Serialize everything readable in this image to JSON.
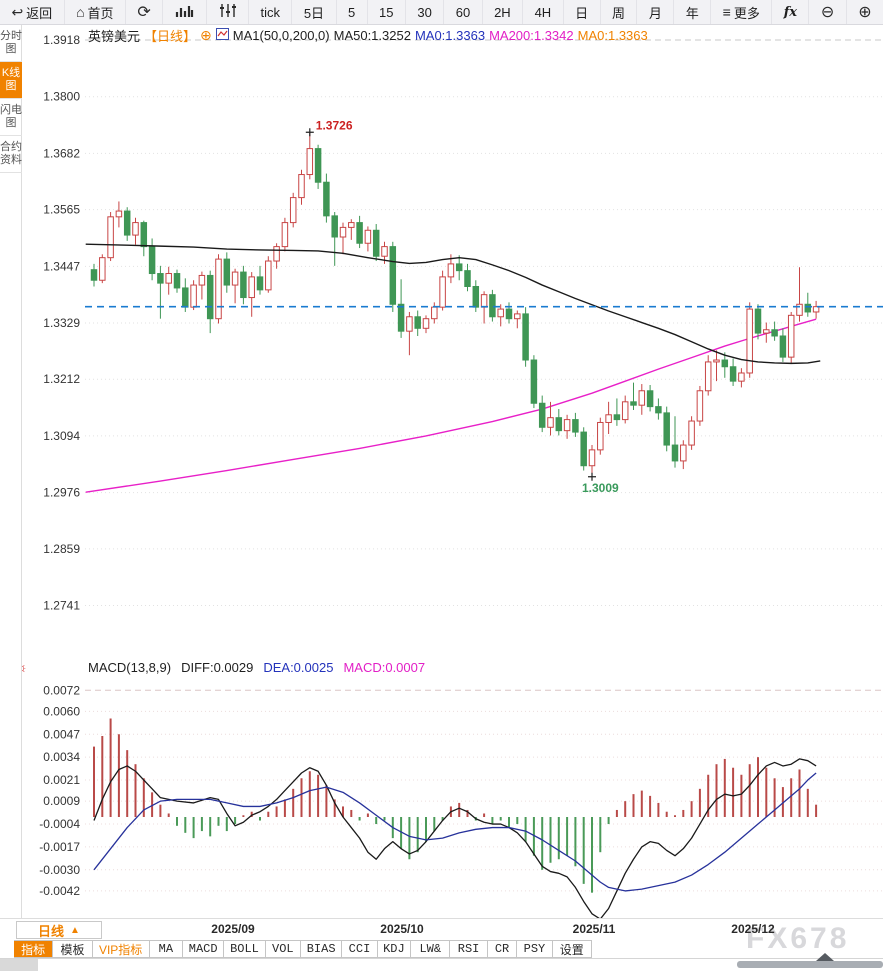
{
  "toolbar": {
    "back_label": "返回",
    "home_label": "首页",
    "more_label": "更多",
    "fx_label": "fx",
    "icons": {
      "back": "↩",
      "home": "⌂",
      "refresh": "⟳",
      "more": "≡",
      "zoom_out": "⊖",
      "zoom_in": "⊕"
    },
    "periods": [
      "tick",
      "5日",
      "5",
      "15",
      "30",
      "60",
      "2H",
      "4H",
      "日",
      "周",
      "月",
      "年"
    ]
  },
  "sidebar": {
    "items": [
      "分时图",
      "K线图",
      "闪电图",
      "合约资料"
    ],
    "active_index": 1
  },
  "chart_header": {
    "symbol": "英镑美元",
    "period": "【日线】",
    "plus_icon": "⊕",
    "ma_group": "MA1(50,0,200,0)",
    "ma50": "MA50:1.3252",
    "ma0_blue": "MA0:1.3363",
    "ma200": "MA200:1.3342",
    "ma0_orange": "MA0:1.3363"
  },
  "macd_header": {
    "title": "MACD(13,8,9)",
    "diff": "DIFF:0.0029",
    "dea": "DEA:0.0025",
    "macd": "MACD:0.0007"
  },
  "bottom": {
    "period_label": "日线",
    "period_arrow": "▲",
    "months": [
      "2025/09",
      "2025/10",
      "2025/11",
      "2025/12"
    ],
    "tabs": [
      "指标",
      "模板",
      "VIP指标",
      "MA",
      "MACD",
      "BOLL",
      "VOL",
      "BIAS",
      "CCI",
      "KDJ",
      "LW&",
      "RSI",
      "CR",
      "PSY",
      "设置"
    ],
    "watermark": "FX678"
  },
  "chart_data": {
    "type": "candlestick",
    "title": "英镑美元 日线 (GBP/USD Daily)",
    "y_ticks": [
      1.3918,
      1.38,
      1.3682,
      1.3565,
      1.3447,
      1.3329,
      1.3212,
      1.3094,
      1.2976,
      1.2859,
      1.2741
    ],
    "x_labels": [
      "2025/09",
      "2025/10",
      "2025/11",
      "2025/12"
    ],
    "price_line": {
      "value": 1.3363,
      "color": "#1a7bd0"
    },
    "annotations": [
      {
        "label": "1.3726",
        "index": 26,
        "price": 1.3726,
        "color": "#cc2222",
        "position": "above"
      },
      {
        "label": "1.3009",
        "index": 60,
        "price": 1.3009,
        "color": "#3a9a5c",
        "position": "below"
      }
    ],
    "colors": {
      "up": "#c84545",
      "down": "#3f9655",
      "ma50": "#1a1a1a",
      "ma200": "#e820c8",
      "grid": "#e0e0e0",
      "hist_up": "#b94a48",
      "hist_down": "#4a9a58",
      "diff": "#1a1a1a",
      "dea": "#27329b"
    },
    "candles": [
      [
        1.344,
        1.3452,
        1.3405,
        1.3418
      ],
      [
        1.3418,
        1.3472,
        1.3412,
        1.3465
      ],
      [
        1.3465,
        1.356,
        1.3458,
        1.355
      ],
      [
        1.355,
        1.3582,
        1.3528,
        1.3562
      ],
      [
        1.3562,
        1.357,
        1.35,
        1.3512
      ],
      [
        1.3512,
        1.3548,
        1.3492,
        1.3538
      ],
      [
        1.3538,
        1.3542,
        1.3468,
        1.3488
      ],
      [
        1.3488,
        1.3505,
        1.3418,
        1.3432
      ],
      [
        1.3432,
        1.3448,
        1.3338,
        1.3412
      ],
      [
        1.3412,
        1.3446,
        1.3388,
        1.3432
      ],
      [
        1.3432,
        1.344,
        1.3392,
        1.3402
      ],
      [
        1.3402,
        1.3422,
        1.3352,
        1.3362
      ],
      [
        1.3362,
        1.3418,
        1.3356,
        1.3408
      ],
      [
        1.3408,
        1.3436,
        1.3378,
        1.3428
      ],
      [
        1.3428,
        1.3438,
        1.3308,
        1.3338
      ],
      [
        1.3338,
        1.3472,
        1.3328,
        1.3462
      ],
      [
        1.3462,
        1.3476,
        1.3392,
        1.3408
      ],
      [
        1.3408,
        1.3442,
        1.337,
        1.3435
      ],
      [
        1.3435,
        1.3448,
        1.3368,
        1.3382
      ],
      [
        1.3382,
        1.3435,
        1.3342,
        1.3425
      ],
      [
        1.3425,
        1.3448,
        1.3388,
        1.3398
      ],
      [
        1.3398,
        1.3468,
        1.3392,
        1.3458
      ],
      [
        1.3458,
        1.3495,
        1.3442,
        1.3488
      ],
      [
        1.3488,
        1.3548,
        1.3478,
        1.3538
      ],
      [
        1.3538,
        1.36,
        1.3528,
        1.359
      ],
      [
        1.359,
        1.3648,
        1.3575,
        1.3638
      ],
      [
        1.3638,
        1.3726,
        1.3628,
        1.3692
      ],
      [
        1.3692,
        1.37,
        1.3608,
        1.3622
      ],
      [
        1.3622,
        1.364,
        1.3538,
        1.3552
      ],
      [
        1.3552,
        1.356,
        1.3448,
        1.3508
      ],
      [
        1.3508,
        1.3538,
        1.3472,
        1.3528
      ],
      [
        1.3528,
        1.3545,
        1.3502,
        1.3538
      ],
      [
        1.3538,
        1.3552,
        1.3485,
        1.3495
      ],
      [
        1.3495,
        1.353,
        1.3478,
        1.3522
      ],
      [
        1.3522,
        1.3535,
        1.3458,
        1.3468
      ],
      [
        1.3468,
        1.3498,
        1.3452,
        1.3488
      ],
      [
        1.3488,
        1.3498,
        1.3352,
        1.3368
      ],
      [
        1.3368,
        1.342,
        1.3298,
        1.3312
      ],
      [
        1.3312,
        1.3352,
        1.3262,
        1.3342
      ],
      [
        1.3342,
        1.3355,
        1.3302,
        1.3318
      ],
      [
        1.3318,
        1.3345,
        1.3308,
        1.3338
      ],
      [
        1.3338,
        1.3372,
        1.3328,
        1.3362
      ],
      [
        1.3362,
        1.3438,
        1.3355,
        1.3425
      ],
      [
        1.3425,
        1.3472,
        1.3412,
        1.3452
      ],
      [
        1.3452,
        1.347,
        1.3418,
        1.3438
      ],
      [
        1.3438,
        1.3452,
        1.3395,
        1.3405
      ],
      [
        1.3405,
        1.3418,
        1.3352,
        1.3362
      ],
      [
        1.3362,
        1.3395,
        1.3328,
        1.3388
      ],
      [
        1.3388,
        1.3398,
        1.3332,
        1.3342
      ],
      [
        1.3342,
        1.3368,
        1.3322,
        1.3358
      ],
      [
        1.3358,
        1.3372,
        1.3328,
        1.3338
      ],
      [
        1.3338,
        1.3355,
        1.3318,
        1.3348
      ],
      [
        1.3348,
        1.3362,
        1.3238,
        1.3252
      ],
      [
        1.3252,
        1.3262,
        1.3152,
        1.3162
      ],
      [
        1.3162,
        1.3178,
        1.3102,
        1.3112
      ],
      [
        1.3112,
        1.3165,
        1.3095,
        1.3132
      ],
      [
        1.3132,
        1.315,
        1.3095,
        1.3105
      ],
      [
        1.3105,
        1.3138,
        1.3088,
        1.3128
      ],
      [
        1.3128,
        1.3142,
        1.3092,
        1.3102
      ],
      [
        1.3102,
        1.3112,
        1.3022,
        1.3032
      ],
      [
        1.3032,
        1.3075,
        1.3009,
        1.3065
      ],
      [
        1.3065,
        1.3132,
        1.3055,
        1.3122
      ],
      [
        1.3122,
        1.3165,
        1.3098,
        1.3138
      ],
      [
        1.3138,
        1.3172,
        1.3115,
        1.3128
      ],
      [
        1.3128,
        1.3178,
        1.312,
        1.3165
      ],
      [
        1.3165,
        1.3205,
        1.3148,
        1.3158
      ],
      [
        1.3158,
        1.3202,
        1.3138,
        1.3188
      ],
      [
        1.3188,
        1.32,
        1.3145,
        1.3155
      ],
      [
        1.3155,
        1.3172,
        1.3128,
        1.3142
      ],
      [
        1.3142,
        1.3155,
        1.3062,
        1.3075
      ],
      [
        1.3075,
        1.3135,
        1.3028,
        1.3042
      ],
      [
        1.3042,
        1.3085,
        1.3025,
        1.3075
      ],
      [
        1.3075,
        1.3135,
        1.3065,
        1.3125
      ],
      [
        1.3125,
        1.3198,
        1.3115,
        1.3188
      ],
      [
        1.3188,
        1.3262,
        1.3178,
        1.3248
      ],
      [
        1.3248,
        1.3272,
        1.3208,
        1.3252
      ],
      [
        1.3252,
        1.3268,
        1.3215,
        1.3238
      ],
      [
        1.3238,
        1.3255,
        1.3198,
        1.3208
      ],
      [
        1.3208,
        1.3235,
        1.3195,
        1.3225
      ],
      [
        1.3225,
        1.3372,
        1.3215,
        1.3358
      ],
      [
        1.3358,
        1.3368,
        1.3295,
        1.3308
      ],
      [
        1.3308,
        1.333,
        1.3288,
        1.3315
      ],
      [
        1.3315,
        1.3332,
        1.3292,
        1.3302
      ],
      [
        1.3302,
        1.3318,
        1.3248,
        1.3258
      ],
      [
        1.3258,
        1.3352,
        1.3245,
        1.3345
      ],
      [
        1.3345,
        1.3445,
        1.3332,
        1.3368
      ],
      [
        1.3368,
        1.3392,
        1.3342,
        1.3352
      ],
      [
        1.3352,
        1.3375,
        1.3338,
        1.3363
      ]
    ],
    "ma50_points": [
      [
        -1,
        1.3493
      ],
      [
        4,
        1.3491
      ],
      [
        8,
        1.3489
      ],
      [
        12,
        1.3487
      ],
      [
        16,
        1.3483
      ],
      [
        20,
        1.3481
      ],
      [
        24,
        1.348
      ],
      [
        27,
        1.3479
      ],
      [
        30,
        1.3474
      ],
      [
        33,
        1.3465
      ],
      [
        36,
        1.3457
      ],
      [
        38,
        1.3453
      ],
      [
        40,
        1.3455
      ],
      [
        42,
        1.3461
      ],
      [
        44,
        1.3465
      ],
      [
        46,
        1.3461
      ],
      [
        48,
        1.345
      ],
      [
        50,
        1.3438
      ],
      [
        52,
        1.3424
      ],
      [
        54,
        1.3408
      ],
      [
        56,
        1.3394
      ],
      [
        58,
        1.338
      ],
      [
        60,
        1.3367
      ],
      [
        62,
        1.3354
      ],
      [
        64,
        1.3342
      ],
      [
        66,
        1.333
      ],
      [
        68,
        1.3318
      ],
      [
        70,
        1.3305
      ],
      [
        72,
        1.329
      ],
      [
        74,
        1.3275
      ],
      [
        76,
        1.3262
      ],
      [
        78,
        1.3253
      ],
      [
        80,
        1.3248
      ],
      [
        82,
        1.3246
      ],
      [
        84,
        1.3245
      ],
      [
        86,
        1.3246
      ],
      [
        87.5,
        1.325
      ]
    ],
    "ma200_points": [
      [
        -1,
        1.2977
      ],
      [
        8,
        1.3
      ],
      [
        16,
        1.3022
      ],
      [
        24,
        1.3045
      ],
      [
        32,
        1.3068
      ],
      [
        40,
        1.3094
      ],
      [
        48,
        1.3124
      ],
      [
        54,
        1.315
      ],
      [
        60,
        1.3183
      ],
      [
        64,
        1.3208
      ],
      [
        68,
        1.3233
      ],
      [
        72,
        1.3257
      ],
      [
        76,
        1.3281
      ],
      [
        79,
        1.3297
      ],
      [
        81,
        1.3307
      ],
      [
        83,
        1.3317
      ],
      [
        85,
        1.3327
      ],
      [
        87,
        1.3337
      ]
    ],
    "macd": {
      "params": "MACD(13,8,9)",
      "diff_last": 0.0029,
      "dea_last": 0.0025,
      "macd_last": 0.0007,
      "y_ticks": [
        0.0072,
        0.006,
        0.0047,
        0.0034,
        0.0021,
        0.0009,
        -0.0004,
        -0.0017,
        -0.003,
        -0.0042
      ],
      "hist_1e4": [
        40,
        46,
        56,
        47,
        38,
        30,
        22,
        14,
        7,
        2,
        -5,
        -9,
        -12,
        -8,
        -11,
        -5,
        -8,
        -4,
        1,
        3,
        -2,
        3,
        6,
        10,
        16,
        22,
        26,
        24,
        18,
        10,
        6,
        4,
        -2,
        2,
        -4,
        -2,
        -12,
        -18,
        -24,
        -20,
        -14,
        -8,
        -2,
        6,
        8,
        4,
        -2,
        2,
        -4,
        -2,
        -6,
        -4,
        -14,
        -22,
        -30,
        -26,
        -24,
        -22,
        -28,
        -38,
        -43,
        -20,
        -4,
        4,
        9,
        13,
        15,
        12,
        8,
        3,
        1,
        4,
        9,
        16,
        24,
        30,
        33,
        28,
        24,
        30,
        34,
        28,
        22,
        17,
        22,
        27,
        16,
        7
      ],
      "diff_points_1e4": [
        [
          0,
          -2
        ],
        [
          1,
          10
        ],
        [
          2,
          20
        ],
        [
          3,
          27
        ],
        [
          4,
          29
        ],
        [
          5,
          26
        ],
        [
          6,
          21
        ],
        [
          7,
          16
        ],
        [
          8,
          11
        ],
        [
          10,
          9
        ],
        [
          12,
          8
        ],
        [
          14,
          11
        ],
        [
          15,
          10
        ],
        [
          16,
          2
        ],
        [
          17,
          -5
        ],
        [
          18,
          -3
        ],
        [
          19,
          1
        ],
        [
          20,
          3
        ],
        [
          21,
          6
        ],
        [
          22,
          10
        ],
        [
          23,
          15
        ],
        [
          24,
          20
        ],
        [
          25,
          25
        ],
        [
          26,
          28
        ],
        [
          27,
          26
        ],
        [
          28,
          18
        ],
        [
          29,
          8
        ],
        [
          30,
          0
        ],
        [
          31,
          -6
        ],
        [
          32,
          -12
        ],
        [
          33,
          -20
        ],
        [
          34,
          -24
        ],
        [
          35,
          -18
        ],
        [
          36,
          -14
        ],
        [
          37,
          -18
        ],
        [
          38,
          -21
        ],
        [
          39,
          -19
        ],
        [
          40,
          -14
        ],
        [
          41,
          -8
        ],
        [
          42,
          -2
        ],
        [
          43,
          3
        ],
        [
          44,
          5
        ],
        [
          45,
          3
        ],
        [
          46,
          -1
        ],
        [
          47,
          -3
        ],
        [
          48,
          -4
        ],
        [
          49,
          -4
        ],
        [
          50,
          -6
        ],
        [
          51,
          -9
        ],
        [
          52,
          -14
        ],
        [
          53,
          -21
        ],
        [
          54,
          -28
        ],
        [
          55,
          -31
        ],
        [
          56,
          -32
        ],
        [
          57,
          -34
        ],
        [
          58,
          -40
        ],
        [
          59,
          -48
        ],
        [
          60,
          -55
        ],
        [
          61,
          -58
        ],
        [
          62,
          -52
        ],
        [
          63,
          -42
        ],
        [
          64,
          -32
        ],
        [
          65,
          -24
        ],
        [
          66,
          -17
        ],
        [
          67,
          -14
        ],
        [
          68,
          -15
        ],
        [
          69,
          -19
        ],
        [
          70,
          -22
        ],
        [
          71,
          -18
        ],
        [
          72,
          -12
        ],
        [
          73,
          -4
        ],
        [
          74,
          4
        ],
        [
          75,
          10
        ],
        [
          76,
          13
        ],
        [
          77,
          12
        ],
        [
          78,
          13
        ],
        [
          79,
          18
        ],
        [
          80,
          24
        ],
        [
          81,
          29
        ],
        [
          82,
          31
        ],
        [
          83,
          29
        ],
        [
          84,
          30
        ],
        [
          85,
          33
        ],
        [
          86,
          32
        ],
        [
          87,
          29
        ]
      ],
      "dea_points_1e4": [
        [
          0,
          -30
        ],
        [
          2,
          -18
        ],
        [
          4,
          -6
        ],
        [
          6,
          4
        ],
        [
          8,
          9
        ],
        [
          10,
          10
        ],
        [
          12,
          10
        ],
        [
          14,
          10
        ],
        [
          16,
          8
        ],
        [
          18,
          6
        ],
        [
          20,
          6
        ],
        [
          22,
          8
        ],
        [
          24,
          11
        ],
        [
          26,
          15
        ],
        [
          28,
          17
        ],
        [
          30,
          14
        ],
        [
          32,
          8
        ],
        [
          34,
          1
        ],
        [
          36,
          -6
        ],
        [
          38,
          -11
        ],
        [
          40,
          -13
        ],
        [
          42,
          -12
        ],
        [
          44,
          -9
        ],
        [
          46,
          -7
        ],
        [
          48,
          -6
        ],
        [
          50,
          -6
        ],
        [
          52,
          -8
        ],
        [
          54,
          -13
        ],
        [
          56,
          -19
        ],
        [
          58,
          -25
        ],
        [
          60,
          -33
        ],
        [
          61,
          -37
        ],
        [
          62,
          -40
        ],
        [
          64,
          -42
        ],
        [
          66,
          -41
        ],
        [
          68,
          -39
        ],
        [
          70,
          -37
        ],
        [
          72,
          -33
        ],
        [
          74,
          -27
        ],
        [
          76,
          -20
        ],
        [
          78,
          -12
        ],
        [
          80,
          -4
        ],
        [
          82,
          4
        ],
        [
          84,
          12
        ],
        [
          85,
          16
        ],
        [
          86,
          21
        ],
        [
          87,
          25
        ]
      ]
    }
  }
}
